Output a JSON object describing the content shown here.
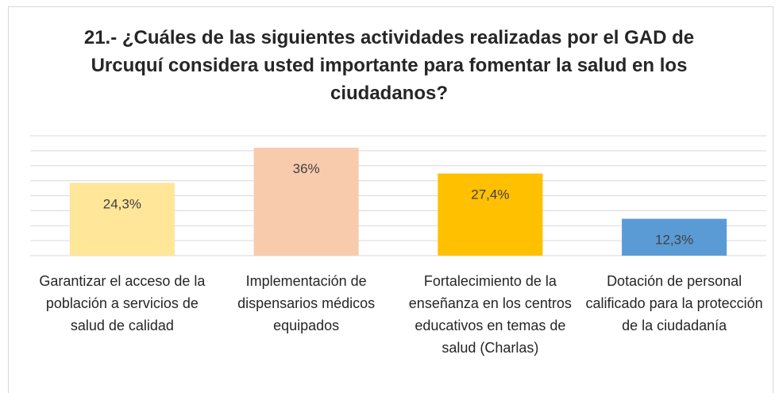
{
  "chart_data": {
    "type": "bar",
    "title": "21.- ¿Cuáles de las siguientes actividades realizadas por el GAD de Urcuquí considera usted importante para fomentar la salud en los ciudadanos?",
    "categories": [
      "Garantizar el acceso de la población a servicios de salud de calidad",
      "Implementación de dispensarios médicos equipados",
      "Fortalecimiento de la enseñanza en los centros educativos en temas de salud (Charlas)",
      "Dotación de personal calificado para la protección de la ciudadanía"
    ],
    "values": [
      24.3,
      36,
      27.4,
      12.3
    ],
    "value_labels": [
      "24,3%",
      "36%",
      "27,4%",
      "12,3%"
    ],
    "colors": [
      "#ffe699",
      "#f8cbad",
      "#ffc000",
      "#5b9bd5"
    ],
    "ylim": [
      0,
      40
    ],
    "yticks": [
      0,
      5,
      10,
      15,
      20,
      25,
      30,
      35,
      40
    ],
    "grid": true
  }
}
